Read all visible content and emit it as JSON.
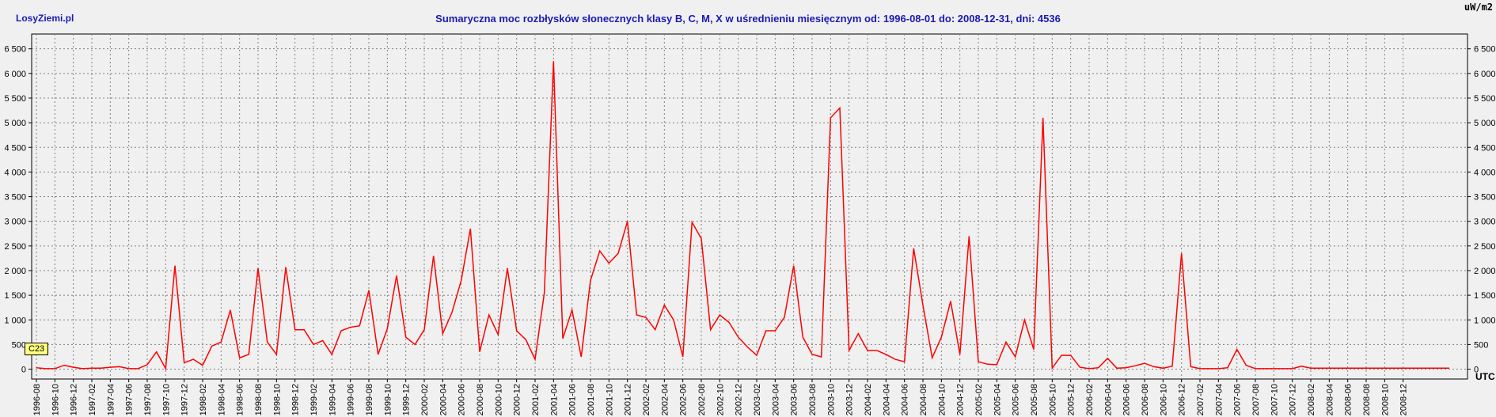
{
  "header": {
    "brand": "LosyZiemi.pl",
    "title": "Sumaryczna moc rozbłysków słonecznych klasy B, C, M, X w uśrednieniu miesięcznym od: 1996-08-01 do: 2008-12-31, dni: 4536",
    "unit_label": "uW/m2",
    "x_unit_label": "UTC",
    "badge": "C23"
  },
  "colors": {
    "series": "#ff0000",
    "background": "#f0f0f0",
    "grid": "#808080",
    "title": "#1a1ab4"
  },
  "chart_data": {
    "type": "line",
    "title": "Sumaryczna moc rozbłysków słonecznych klasy B, C, M, X w uśrednieniu miesięcznym od: 1996-08-01 do: 2008-12-31, dni: 4536",
    "ylabel": "uW/m2",
    "xlabel": "UTC",
    "ylim": [
      -200,
      6800
    ],
    "yticks": [
      0,
      500,
      1000,
      1500,
      2000,
      2500,
      3000,
      3500,
      4000,
      4500,
      5000,
      5500,
      6000,
      6500
    ],
    "ytick_labels": [
      "0",
      "500",
      "1 000",
      "1 500",
      "2 000",
      "2 500",
      "3 000",
      "3 500",
      "4 000",
      "4 500",
      "5 000",
      "5 500",
      "6 000",
      "6 500"
    ],
    "grid": true,
    "series": [
      {
        "values": [
          30,
          10,
          10,
          80,
          40,
          10,
          20,
          20,
          40,
          50,
          10,
          10,
          90,
          350,
          10,
          2100,
          130,
          200,
          80,
          470,
          550,
          1200,
          230,
          300,
          2050,
          550,
          300,
          2070,
          800,
          800,
          500,
          580,
          300,
          780,
          850,
          880,
          1600,
          300,
          820,
          1900,
          650,
          500,
          800,
          2300,
          720,
          1150,
          1800,
          2850,
          350,
          1100,
          700,
          2050,
          780,
          600,
          200,
          1550,
          6250,
          620,
          1200,
          250,
          1800,
          2400,
          2150,
          2350,
          3000,
          1100,
          1050,
          800,
          1300,
          1000,
          250,
          2980,
          2650,
          800,
          1100,
          950,
          650,
          450,
          280,
          780,
          780,
          1050,
          2100,
          650,
          300,
          250,
          5100,
          5300,
          380,
          720,
          380,
          380,
          300,
          200,
          150,
          2450,
          1300,
          230,
          650,
          1380,
          300,
          2700,
          150,
          100,
          90,
          550,
          250,
          1000,
          400,
          5100,
          20,
          280,
          280,
          40,
          10,
          30,
          220,
          20,
          30,
          70,
          120,
          50,
          20,
          60,
          2350,
          50,
          10,
          10,
          10,
          30,
          400,
          80,
          10,
          10,
          10,
          10,
          10,
          60,
          20,
          20,
          20,
          20,
          20,
          20,
          20,
          20,
          20,
          20,
          20,
          20,
          20,
          20,
          20,
          20
        ]
      }
    ],
    "x_tick_labels": [
      "1996-08",
      "1996-10",
      "1996-12",
      "1997-02",
      "1997-04",
      "1997-06",
      "1997-08",
      "1997-10",
      "1997-12",
      "1998-02",
      "1998-04",
      "1998-06",
      "1998-08",
      "1998-10",
      "1998-12",
      "1999-02",
      "1999-04",
      "1999-06",
      "1999-08",
      "1999-10",
      "1999-12",
      "2000-02",
      "2000-04",
      "2000-06",
      "2000-08",
      "2000-10",
      "2000-12",
      "2001-02",
      "2001-04",
      "2001-06",
      "2001-08",
      "2001-10",
      "2001-12",
      "2002-02",
      "2002-04",
      "2002-06",
      "2002-08",
      "2002-10",
      "2002-12",
      "2003-02",
      "2003-04",
      "2003-06",
      "2003-08",
      "2003-10",
      "2003-12",
      "2004-02",
      "2004-04",
      "2004-06",
      "2004-08",
      "2004-10",
      "2004-12",
      "2005-02",
      "2005-04",
      "2005-06",
      "2005-08",
      "2005-10",
      "2005-12",
      "2006-02",
      "2006-04",
      "2006-06",
      "2006-08",
      "2006-10",
      "2006-12",
      "2007-02",
      "2007-04",
      "2007-06",
      "2007-08",
      "2007-10",
      "2007-12",
      "2008-02",
      "2008-04",
      "2008-06",
      "2008-08",
      "2008-10",
      "2008-12"
    ]
  }
}
